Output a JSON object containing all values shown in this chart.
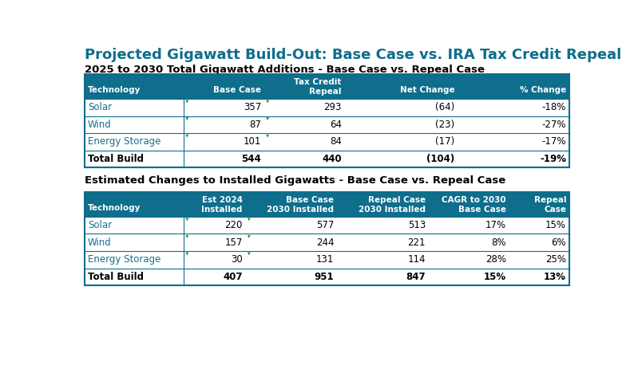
{
  "title": "Projected Gigawatt Build-Out: Base Case vs. IRA Tax Credit Repeal",
  "title_color": "#0e6e8c",
  "title_fontsize": 13,
  "header_bg": "#0e6e8c",
  "header_text_color": "#ffffff",
  "border_color": "#0e6e8c",
  "data_text_color_left": "#1a6e8a",
  "data_text_color_right": "#000000",
  "total_text_color": "#000000",
  "section1_title": "2025 to 2030 Total Gigawatt Additions - Base Case vs. Repeal Case",
  "section2_title": "Estimated Changes to Installed Gigawatts - Base Case vs. Repeal Case",
  "section_title_fontsize": 9.5,
  "table1": {
    "col_headers": [
      [
        "Technology",
        ""
      ],
      [
        "Base Case",
        ""
      ],
      [
        "Tax Credit",
        "Repeal"
      ],
      [
        "Net Change",
        ""
      ],
      [
        "% Change",
        ""
      ]
    ],
    "rows": [
      [
        "Solar",
        "357",
        "293",
        "(64)",
        "-18%"
      ],
      [
        "Wind",
        "87",
        "64",
        "(23)",
        "-27%"
      ],
      [
        "Energy Storage",
        "101",
        "84",
        "(17)",
        "-17%"
      ],
      [
        "Total Build",
        "544",
        "440",
        "(104)",
        "-19%"
      ]
    ],
    "col_aligns": [
      "left",
      "right",
      "right",
      "right",
      "right"
    ],
    "total_row_idx": 3,
    "arrow_cols": [
      1,
      2
    ]
  },
  "table2": {
    "col_headers": [
      [
        "Technology",
        ""
      ],
      [
        "Est 2024",
        "Installed"
      ],
      [
        "Base Case",
        "2030 Installed"
      ],
      [
        "Repeal Case",
        "2030 Installed"
      ],
      [
        "CAGR to 2030",
        "Base Case"
      ],
      [
        "Repeal",
        "Case"
      ]
    ],
    "rows": [
      [
        "Solar",
        "220",
        "577",
        "513",
        "17%",
        "15%"
      ],
      [
        "Wind",
        "157",
        "244",
        "221",
        "8%",
        "6%"
      ],
      [
        "Energy Storage",
        "30",
        "131",
        "114",
        "28%",
        "25%"
      ],
      [
        "Total Build",
        "407",
        "951",
        "847",
        "15%",
        "13%"
      ]
    ],
    "col_aligns": [
      "left",
      "right",
      "right",
      "right",
      "right",
      "right"
    ],
    "total_row_idx": 3,
    "arrow_cols": [
      1,
      2
    ]
  },
  "arrow_color": "#1a9c1a",
  "fig_width": 7.99,
  "fig_height": 4.63,
  "dpi": 100
}
